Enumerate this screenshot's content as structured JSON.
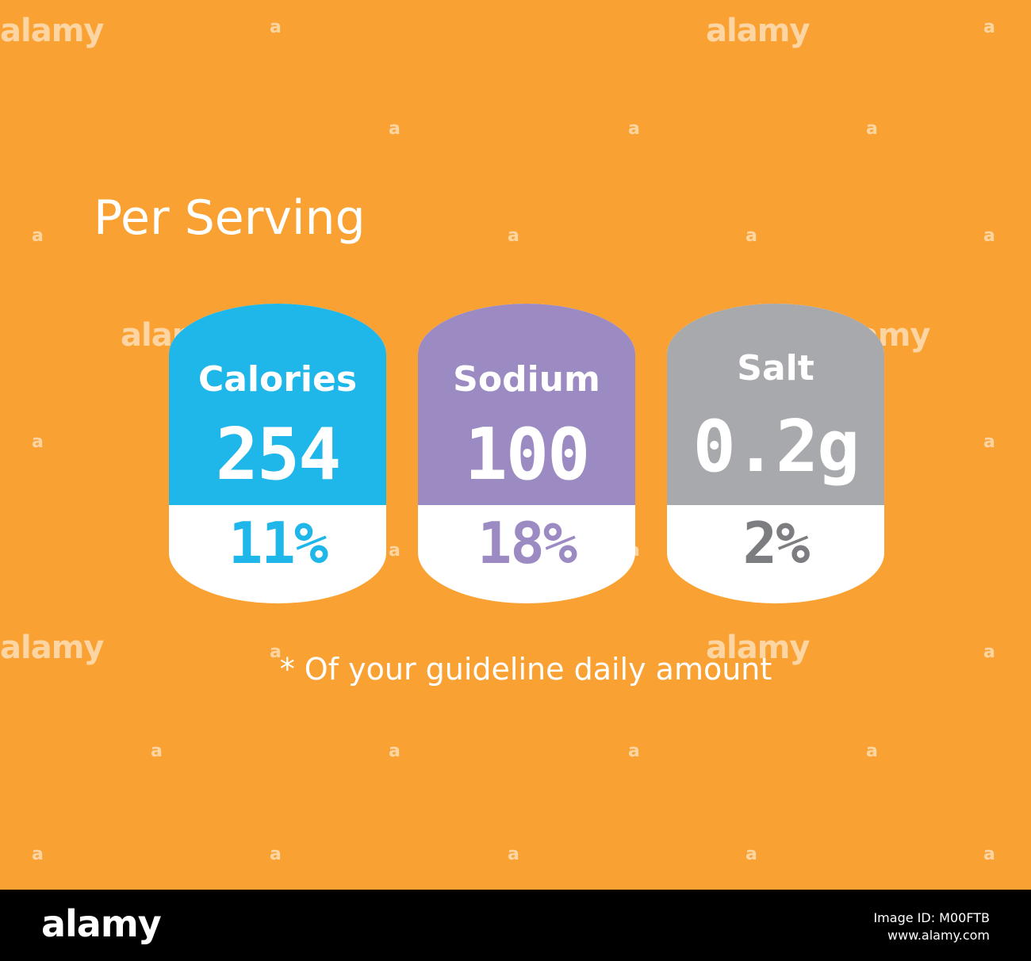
{
  "title": "Per Serving",
  "cards": [
    {
      "label": "Calories",
      "value": "254",
      "percent": "11%",
      "color": "#1fb6e9",
      "pct_color": "#1fb6e9"
    },
    {
      "label": "Sodium",
      "value": "100",
      "percent": "18%",
      "color": "#9c8bc2",
      "pct_color": "#9c8bc2"
    },
    {
      "label": "Salt",
      "value": "0.2g",
      "percent": "2%",
      "color": "#a7a9ac",
      "pct_color": "#7c7d80"
    }
  ],
  "footnote": "* Of your guideline daily amount",
  "background_color": "#f9a233",
  "watermark": {
    "text": "alamy",
    "mark": "a"
  },
  "footer": {
    "brand": "alamy",
    "image_id_label": "Image ID: M00FTB",
    "site": "www.alamy.com"
  }
}
